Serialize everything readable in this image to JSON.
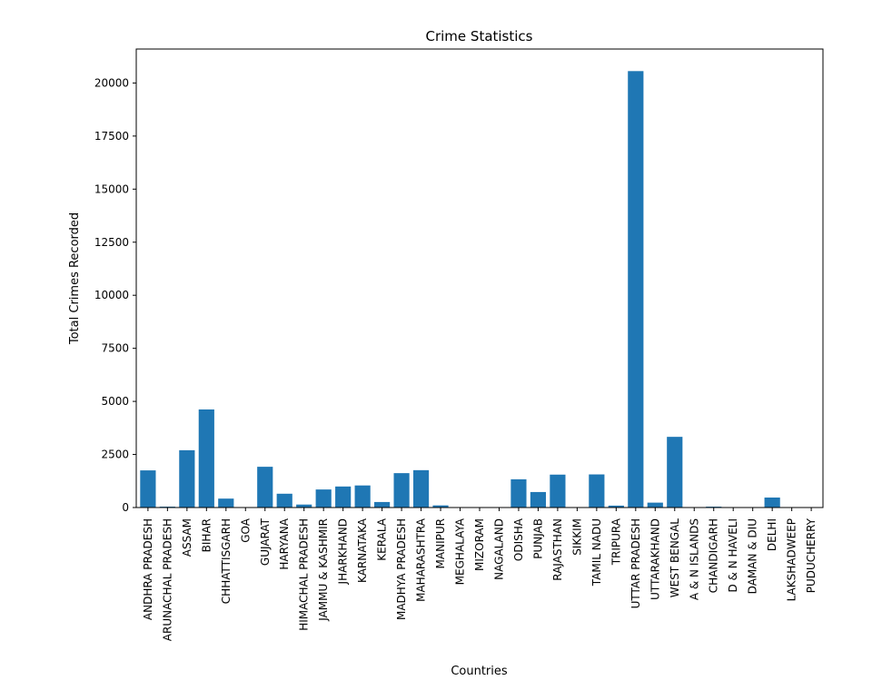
{
  "chart_data": {
    "type": "bar",
    "title": "Crime Statistics",
    "xlabel": "Countries",
    "ylabel": "Total Crimes Recorded",
    "ylim": [
      0,
      21600
    ],
    "yticks": [
      0,
      2500,
      5000,
      7500,
      10000,
      12500,
      15000,
      17500,
      20000
    ],
    "ytick_labels": [
      "0",
      "2500",
      "5000",
      "7500",
      "10000",
      "12500",
      "15000",
      "17500",
      "20000"
    ],
    "grid": false,
    "bar_color": "#1f77b4",
    "categories": [
      "ANDHRA PRADESH",
      "ARUNACHAL PRADESH",
      "ASSAM",
      "BIHAR",
      "CHHATTISGARH",
      "GOA",
      "GUJARAT",
      "HARYANA",
      "HIMACHAL PRADESH",
      "JAMMU & KASHMIR",
      "JHARKHAND",
      "KARNATAKA",
      "KERALA",
      "MADHYA PRADESH",
      "MAHARASHTRA",
      "MANIPUR",
      "MEGHALAYA",
      "MIZORAM",
      "NAGALAND",
      "ODISHA",
      "PUNJAB",
      "RAJASTHAN",
      "SIKKIM",
      "TAMIL NADU",
      "TRIPURA",
      "UTTAR PRADESH",
      "UTTARAKHAND",
      "WEST BENGAL",
      "A & N ISLANDS",
      "CHANDIGARH",
      "D & N HAVELI",
      "DAMAN & DIU",
      "DELHI",
      "LAKSHADWEEP",
      "PUDUCHERRY"
    ],
    "values": [
      1750,
      40,
      2700,
      4620,
      420,
      5,
      1920,
      650,
      140,
      850,
      990,
      1040,
      260,
      1620,
      1760,
      100,
      10,
      5,
      5,
      1330,
      730,
      1550,
      5,
      1560,
      90,
      20560,
      230,
      3330,
      5,
      40,
      5,
      5,
      470,
      0,
      10
    ]
  }
}
